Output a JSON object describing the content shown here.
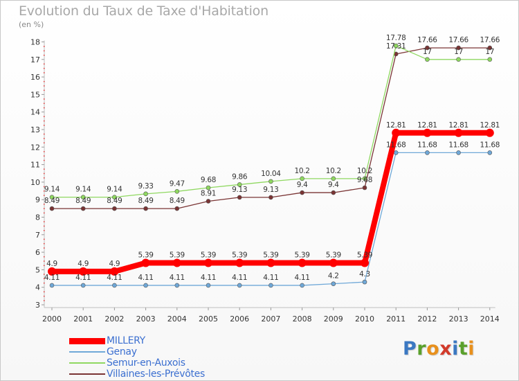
{
  "chart_data": {
    "type": "line",
    "title": "Evolution du Taux de Taxe d'Habitation",
    "subtitle": "(en %)",
    "x": [
      "2000",
      "2001",
      "2002",
      "2003",
      "2004",
      "2005",
      "2006",
      "2007",
      "2008",
      "2009",
      "2010",
      "2011",
      "2012",
      "2013",
      "2014"
    ],
    "ylim": [
      3,
      18
    ],
    "yticks": [
      3,
      4,
      5,
      6,
      7,
      8,
      9,
      10,
      11,
      12,
      13,
      14,
      15,
      16,
      17,
      18
    ],
    "grid": false,
    "legend_position": "bottom-left",
    "series": [
      {
        "name": "MILLERY",
        "color": "#ff0000",
        "values": [
          4.9,
          4.9,
          4.9,
          5.39,
          5.39,
          5.39,
          5.39,
          5.39,
          5.39,
          5.39,
          5.39,
          12.81,
          12.81,
          12.81,
          12.81
        ],
        "labels": [
          "4.9",
          "4.9",
          "4.9",
          "5.39",
          "5.39",
          "5.39",
          "5.39",
          "5.39",
          "5.39",
          "5.39",
          "5.39",
          "12.81",
          "12.81",
          "12.81",
          "12.81"
        ]
      },
      {
        "name": "Genay",
        "color": "#6fa8d8",
        "values": [
          4.11,
          4.11,
          4.11,
          4.11,
          4.11,
          4.11,
          4.11,
          4.11,
          4.11,
          4.2,
          4.3,
          11.68,
          11.68,
          11.68,
          11.68
        ],
        "labels": [
          "4.11",
          "4.11",
          "4.11",
          "4.11",
          "4.11",
          "4.11",
          "4.11",
          "4.11",
          "4.11",
          "4.2",
          "4.3",
          "11.68",
          "11.68",
          "11.68",
          "11.68"
        ]
      },
      {
        "name": "Semur-en-Auxois",
        "color": "#8fd860",
        "values": [
          9.14,
          9.14,
          9.14,
          9.33,
          9.47,
          9.68,
          9.86,
          10.04,
          10.2,
          10.2,
          10.2,
          17.78,
          17,
          17,
          17
        ],
        "labels": [
          "9.14",
          "9.14",
          "9.14",
          "9.33",
          "9.47",
          "9.68",
          "9.86",
          "10.04",
          "10.2",
          "10.2",
          "10.2",
          "17.78",
          "17",
          "17",
          "17"
        ]
      },
      {
        "name": "Villaines-les-Prévôtes",
        "color": "#7a3434",
        "values": [
          8.49,
          8.49,
          8.49,
          8.49,
          8.49,
          8.91,
          9.13,
          9.13,
          9.4,
          9.4,
          9.68,
          17.31,
          17.66,
          17.66,
          17.66
        ],
        "labels": [
          "8.49",
          "8.49",
          "8.49",
          "8.49",
          "8.49",
          "8.91",
          "9.13",
          "9.13",
          "9.4",
          "9.4",
          "9.68",
          "17.31",
          "17.66",
          "17.66",
          "17.66"
        ]
      }
    ]
  },
  "logo": [
    "P",
    "r",
    "o",
    "x",
    "i",
    "t",
    "i"
  ]
}
